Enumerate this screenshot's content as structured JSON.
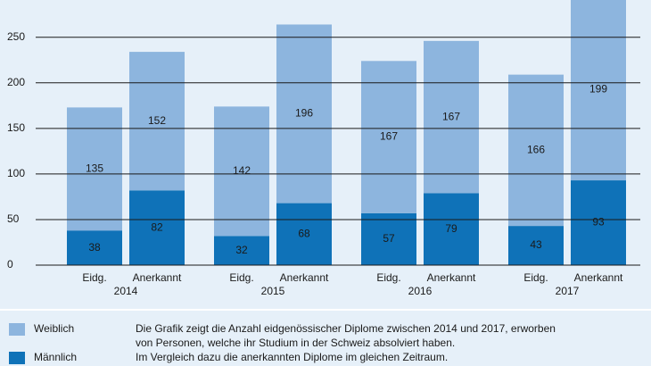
{
  "chart_data": {
    "type": "stacked_bar",
    "categories": [
      "Eidg.",
      "Anerkannt",
      "Eidg.",
      "Anerkannt",
      "Eidg.",
      "Anerkannt",
      "Eidg.",
      "Anerkannt"
    ],
    "groups": [
      "2014",
      "2015",
      "2016",
      "2017"
    ],
    "series": [
      {
        "name": "Männlich",
        "color": "#0f72b8",
        "values": [
          38,
          82,
          32,
          68,
          57,
          79,
          43,
          93
        ]
      },
      {
        "name": "Weiblich",
        "color": "#8db5de",
        "values": [
          135,
          152,
          142,
          196,
          167,
          167,
          166,
          199
        ]
      }
    ],
    "ylim": [
      0,
      286
    ],
    "yticks": [
      0,
      50,
      100,
      150,
      200,
      250
    ],
    "grid": true,
    "note": [
      "Die Grafik zeigt die Anzahl eidgenössischer Diplome zwischen 2014 und 2017, erworben",
      "von Personen, welche ihr Studium in der Schweiz absolviert haben.",
      "Im Vergleich dazu die anerkannten Diplome im gleichen Zeitraum."
    ]
  }
}
